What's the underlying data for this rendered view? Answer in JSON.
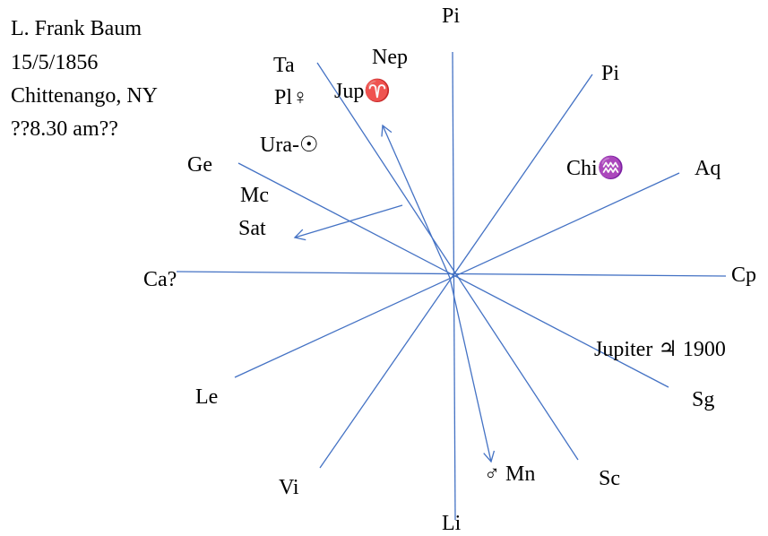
{
  "header": {
    "name": "L. Frank Baum",
    "date": "15/5/1856",
    "place": "Chittenango, NY",
    "time": "??8.30 am??"
  },
  "signs": {
    "pi_top": "Pi",
    "pi_right": "Pi",
    "aq": "Aq",
    "cp": "Cp",
    "sg": "Sg",
    "sc": "Sc",
    "li": "Li",
    "vi": "Vi",
    "le": "Le",
    "ca": "Ca?",
    "ge": "Ge",
    "ta": "Ta"
  },
  "planets": {
    "nep": "Nep",
    "pl_venus": "Pl♀",
    "jup_aries": "Jup♈",
    "ura_sun": "Ura-☉",
    "chi_aq": "Chi♒",
    "mc": "Mc",
    "sat": "Sat",
    "jupiter_1900": "Jupiter ♃ 1900",
    "mars_moon": "♂ Mn"
  },
  "colors": {
    "line": "#4472c4",
    "text": "#000000"
  }
}
